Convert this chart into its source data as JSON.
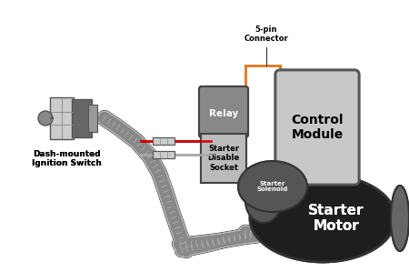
{
  "bg_color": "#ffffff",
  "wire_color_red": "#cc0000",
  "wire_color_orange": "#e07820",
  "wire_color_gray": "#aaaaaa",
  "dk": "#222222",
  "lgray": "#c0c0c0",
  "mgray": "#888888",
  "dgray": "#444444",
  "switch_label": "Dash-mounted\nIgnition Switch",
  "relay_label": "Relay",
  "socket_label": "Starter\nDisable\nSocket",
  "module_label": "Control\nModule",
  "fivepin_label": "5-pin\nConnector",
  "solenoid_label": "Starter\nSolenoid",
  "motor_label": "Starter\nMotor"
}
